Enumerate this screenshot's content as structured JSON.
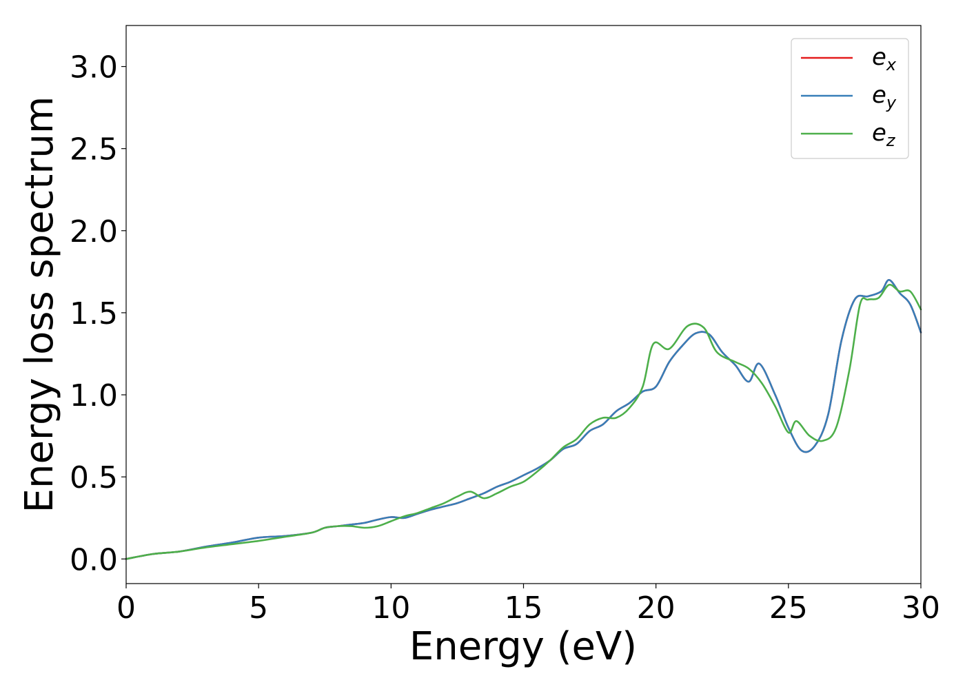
{
  "chart_data": {
    "type": "line",
    "title": "",
    "xlabel": "Energy (eV)",
    "ylabel": "Energy loss spectrum",
    "xlim": [
      0,
      30
    ],
    "ylim": [
      -0.15,
      3.25
    ],
    "xticks": [
      "0",
      "5",
      "10",
      "15",
      "20",
      "25",
      "30"
    ],
    "yticks": [
      "0.0",
      "0.5",
      "1.0",
      "1.5",
      "2.0",
      "2.5",
      "3.0"
    ],
    "grid": false,
    "legend_position": "top-right",
    "series": [
      {
        "name": "e_x",
        "label_base": "e",
        "label_sub": "x",
        "color": "#e41a1c",
        "x": [
          0,
          1,
          2,
          3,
          4,
          5,
          6,
          7,
          7.5,
          8,
          8.5,
          9,
          9.5,
          10,
          10.5,
          11,
          11.5,
          12,
          12.5,
          13,
          13.5,
          14,
          14.5,
          15,
          15.5,
          16,
          16.5,
          17,
          17.5,
          18,
          18.5,
          19,
          19.5,
          20,
          20.5,
          21,
          21.5,
          22,
          22.5,
          23,
          23.5,
          23.9,
          24.5,
          25,
          25.5,
          26,
          26.5,
          27,
          27.5,
          28,
          28.5,
          28.8,
          29.2,
          29.6,
          30
        ],
        "y": [
          0.0,
          0.03,
          0.045,
          0.075,
          0.1,
          0.13,
          0.14,
          0.16,
          0.19,
          0.2,
          0.21,
          0.22,
          0.24,
          0.255,
          0.25,
          0.275,
          0.3,
          0.32,
          0.34,
          0.37,
          0.4,
          0.44,
          0.47,
          0.51,
          0.55,
          0.6,
          0.67,
          0.7,
          0.78,
          0.82,
          0.9,
          0.95,
          1.02,
          1.05,
          1.2,
          1.3,
          1.375,
          1.37,
          1.26,
          1.18,
          1.08,
          1.19,
          1.0,
          0.8,
          0.66,
          0.69,
          0.88,
          1.33,
          1.58,
          1.6,
          1.63,
          1.7,
          1.62,
          1.55,
          1.38
        ]
      },
      {
        "name": "e_y",
        "label_base": "e",
        "label_sub": "y",
        "color": "#377eb8",
        "x": [
          0,
          1,
          2,
          3,
          4,
          5,
          6,
          7,
          7.5,
          8,
          8.5,
          9,
          9.5,
          10,
          10.5,
          11,
          11.5,
          12,
          12.5,
          13,
          13.5,
          14,
          14.5,
          15,
          15.5,
          16,
          16.5,
          17,
          17.5,
          18,
          18.5,
          19,
          19.5,
          20,
          20.5,
          21,
          21.5,
          22,
          22.5,
          23,
          23.5,
          23.9,
          24.5,
          25,
          25.5,
          26,
          26.5,
          27,
          27.5,
          28,
          28.5,
          28.8,
          29.2,
          29.6,
          30
        ],
        "y": [
          0.0,
          0.03,
          0.045,
          0.075,
          0.1,
          0.13,
          0.14,
          0.16,
          0.19,
          0.2,
          0.21,
          0.22,
          0.24,
          0.255,
          0.25,
          0.275,
          0.3,
          0.32,
          0.34,
          0.37,
          0.4,
          0.44,
          0.47,
          0.51,
          0.55,
          0.6,
          0.67,
          0.7,
          0.78,
          0.82,
          0.9,
          0.95,
          1.02,
          1.05,
          1.2,
          1.3,
          1.375,
          1.37,
          1.26,
          1.18,
          1.08,
          1.19,
          1.0,
          0.8,
          0.66,
          0.69,
          0.88,
          1.33,
          1.58,
          1.6,
          1.63,
          1.7,
          1.62,
          1.55,
          1.38
        ]
      },
      {
        "name": "e_z",
        "label_base": "e",
        "label_sub": "z",
        "color": "#4daf4a",
        "x": [
          0,
          1,
          2,
          3,
          4,
          5,
          6,
          7,
          7.5,
          8,
          8.5,
          9,
          9.5,
          10,
          10.5,
          11,
          11.5,
          12,
          12.5,
          13,
          13.5,
          14,
          14.5,
          15,
          15.5,
          16,
          16.5,
          17,
          17.5,
          18,
          18.5,
          19,
          19.5,
          19.9,
          20.5,
          21.2,
          21.8,
          22.3,
          23,
          23.5,
          24,
          24.5,
          25,
          25.3,
          25.8,
          26.3,
          26.8,
          27.3,
          27.7,
          28,
          28.4,
          28.8,
          29.2,
          29.6,
          30
        ],
        "y": [
          0.0,
          0.03,
          0.045,
          0.07,
          0.09,
          0.11,
          0.135,
          0.16,
          0.19,
          0.2,
          0.2,
          0.19,
          0.2,
          0.23,
          0.26,
          0.28,
          0.31,
          0.34,
          0.38,
          0.41,
          0.37,
          0.4,
          0.44,
          0.47,
          0.53,
          0.6,
          0.68,
          0.73,
          0.82,
          0.86,
          0.86,
          0.92,
          1.05,
          1.31,
          1.28,
          1.42,
          1.41,
          1.26,
          1.2,
          1.16,
          1.07,
          0.93,
          0.77,
          0.84,
          0.75,
          0.72,
          0.8,
          1.15,
          1.55,
          1.58,
          1.59,
          1.67,
          1.63,
          1.63,
          1.52
        ]
      }
    ]
  }
}
